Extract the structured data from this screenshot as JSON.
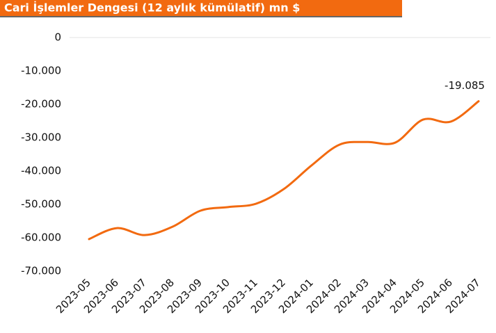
{
  "chart_data": {
    "type": "line",
    "title": "Cari İşlemler Dengesi (12 aylık kümülatif) mn $",
    "categories": [
      "2023-05",
      "2023-06",
      "2023-07",
      "2023-08",
      "2023-09",
      "2023-10",
      "2023-11",
      "2023-12",
      "2024-01",
      "2024-02",
      "2024-03",
      "2024-04",
      "2024-05",
      "2024-06",
      "2024-07"
    ],
    "series": [
      {
        "name": "Cari İşlemler Dengesi",
        "color": "#f26a10",
        "values": [
          -60400,
          -57100,
          -59200,
          -56700,
          -51900,
          -50800,
          -49800,
          -45400,
          -38300,
          -32100,
          -31300,
          -31500,
          -24600,
          -25200,
          -19085
        ],
        "value_labels": [
          null,
          null,
          null,
          null,
          null,
          null,
          null,
          null,
          null,
          null,
          null,
          null,
          null,
          null,
          "-19.085"
        ]
      }
    ],
    "ylim": [
      -70000,
      0
    ],
    "yticks": [
      0,
      {
        "value": -10000,
        "label": "-10.000"
      },
      {
        "value": -20000,
        "label": "-20.000"
      },
      {
        "value": -30000,
        "label": "-30.000"
      },
      {
        "value": -40000,
        "label": "-40.000"
      },
      {
        "value": -50000,
        "label": "-50.000"
      },
      {
        "value": -60000,
        "label": "-60.000"
      },
      {
        "value": -70000,
        "label": "-70.000"
      }
    ],
    "grid": false
  }
}
